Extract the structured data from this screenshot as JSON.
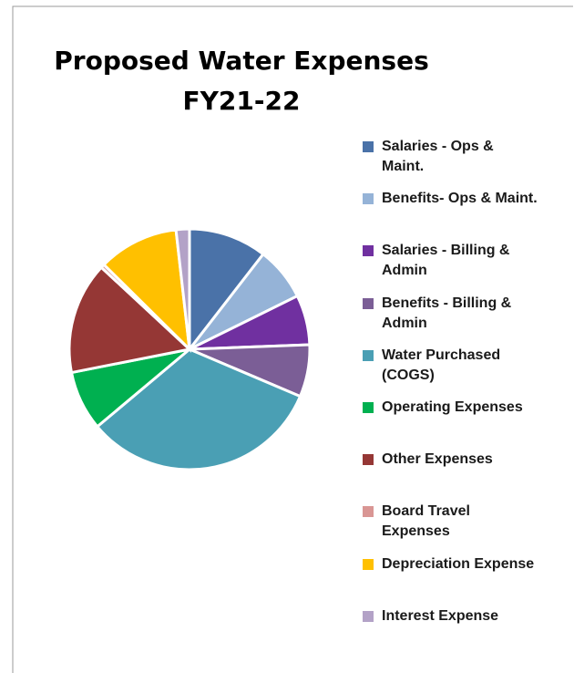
{
  "chart_data": {
    "type": "pie",
    "title": [
      "Proposed Water Expenses",
      "FY21-22"
    ],
    "categories": [
      "Salaries - Ops & Maint.",
      "Benefits- Ops & Maint.",
      "Salaries - Billing & Admin",
      "Benefits - Billing & Admin",
      "Water Purchased (COGS)",
      "Operating Expenses",
      "Other Expenses",
      "Board Travel Expenses",
      "Depreciation Expense",
      "Interest Expense"
    ],
    "values": [
      10.5,
      7.2,
      6.7,
      7,
      32.5,
      8,
      15,
      0.5,
      10.8,
      1.8
    ],
    "colors": [
      "#4a72a8",
      "#95b3d7",
      "#7030a0",
      "#7b5e96",
      "#4a9fb4",
      "#00b050",
      "#953735",
      "#d99694",
      "#ffc000",
      "#b3a2c7"
    ],
    "legend": "right"
  }
}
